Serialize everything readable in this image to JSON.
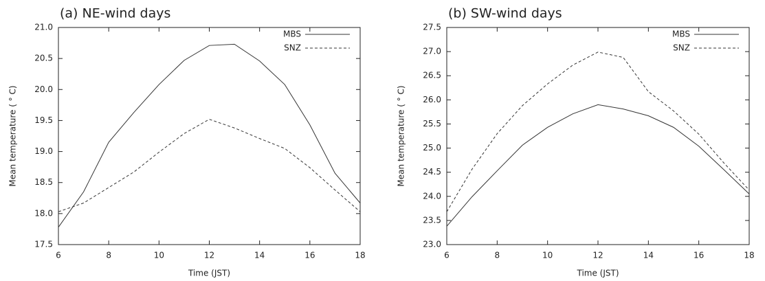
{
  "chart_data": [
    {
      "type": "line",
      "title": "(a) NE-wind days",
      "x_label": "Time (JST)",
      "y_label": "Mean temperature ( ° C)",
      "x": [
        6,
        7,
        8,
        9,
        10,
        11,
        12,
        13,
        14,
        15,
        16,
        17,
        18
      ],
      "series": [
        {
          "name": "MBS",
          "color": "#333333",
          "linestyle": "solid",
          "values": [
            17.78,
            18.35,
            19.15,
            19.63,
            20.08,
            20.47,
            20.71,
            20.73,
            20.46,
            20.08,
            19.43,
            18.65,
            18.17
          ]
        },
        {
          "name": "SNZ",
          "color": "#333333",
          "linestyle": "dashed",
          "values": [
            18.03,
            18.17,
            18.42,
            18.67,
            18.99,
            19.29,
            19.52,
            19.38,
            19.21,
            19.05,
            18.74,
            18.38,
            18.03
          ]
        }
      ],
      "xlim": [
        6,
        18
      ],
      "xticks": [
        6,
        8,
        10,
        12,
        14,
        16,
        18
      ],
      "ylim": [
        17.5,
        21
      ],
      "yticks": [
        17.5,
        {
          "value": 18,
          "label": "18.0"
        },
        18.5,
        {
          "value": 19,
          "label": "19.0"
        },
        19.5,
        {
          "value": 20,
          "label": "20.0"
        },
        20.5,
        {
          "value": 21,
          "label": "21.0"
        }
      ],
      "legend": "upper right"
    },
    {
      "type": "line",
      "title": "(b) SW-wind days",
      "x_label": "Time (JST)",
      "y_label": "Mean temperature ( ° C)",
      "x": [
        6,
        7,
        8,
        9,
        10,
        11,
        12,
        13,
        14,
        15,
        16,
        17,
        18
      ],
      "series": [
        {
          "name": "MBS",
          "color": "#333333",
          "linestyle": "solid",
          "values": [
            23.38,
            23.99,
            24.53,
            25.06,
            25.43,
            25.71,
            25.9,
            25.81,
            25.67,
            25.43,
            25.04,
            24.55,
            24.05
          ]
        },
        {
          "name": "SNZ",
          "color": "#333333",
          "linestyle": "dashed",
          "values": [
            23.68,
            24.56,
            25.3,
            25.88,
            26.33,
            26.72,
            26.99,
            26.88,
            26.17,
            25.77,
            25.29,
            24.69,
            24.13
          ]
        }
      ],
      "xlim": [
        6,
        18
      ],
      "xticks": [
        6,
        8,
        10,
        12,
        14,
        16,
        18
      ],
      "ylim": [
        23,
        27.5
      ],
      "yticks": [
        {
          "value": 23,
          "label": "23.0"
        },
        23.5,
        {
          "value": 24,
          "label": "24.0"
        },
        24.5,
        {
          "value": 25,
          "label": "25.0"
        },
        25.5,
        {
          "value": 26,
          "label": "26.0"
        },
        26.5,
        {
          "value": 27,
          "label": "27.0"
        },
        27.5
      ],
      "legend": "upper right"
    }
  ]
}
